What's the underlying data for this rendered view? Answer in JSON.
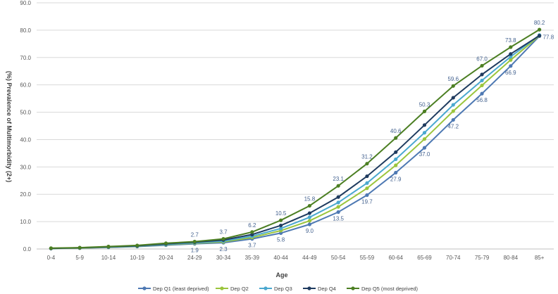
{
  "chart_data": {
    "type": "line",
    "xlabel": "Age",
    "ylabel": "(%) Prevalence of Multimorbidity (2+)",
    "ylim": [
      0,
      90
    ],
    "yticks": [
      "0.0",
      "10.0",
      "20.0",
      "30.0",
      "40.0",
      "50.0",
      "60.0",
      "70.0",
      "80.0",
      "90.0"
    ],
    "grid": true,
    "legend_position": "bottom",
    "categories": [
      "0-4",
      "5-9",
      "10-14",
      "10-19",
      "20-24",
      "24-29",
      "30-34",
      "35-39",
      "40-44",
      "44-49",
      "50-54",
      "55-59",
      "60-64",
      "65-69",
      "70-74",
      "75-79",
      "80-84",
      "85+"
    ],
    "series": [
      {
        "name": "Dep Q1 (least deprived)",
        "color": "#4e79b3",
        "values": [
          0.2,
          0.3,
          0.6,
          0.9,
          1.4,
          1.9,
          2.3,
          3.7,
          5.8,
          9.0,
          13.5,
          19.7,
          27.9,
          37.0,
          47.2,
          56.8,
          66.9,
          77.8
        ]
      },
      {
        "name": "Dep Q2",
        "color": "#9bc53d",
        "values": [
          0.2,
          0.35,
          0.65,
          1.0,
          1.6,
          2.1,
          2.6,
          4.2,
          6.7,
          10.3,
          15.4,
          22.2,
          30.6,
          40.2,
          50.4,
          59.8,
          69.1,
          78.0
        ]
      },
      {
        "name": "Dep Q3",
        "color": "#4aa8cf",
        "values": [
          0.2,
          0.4,
          0.7,
          1.05,
          1.7,
          2.3,
          2.9,
          4.7,
          7.5,
          11.6,
          17.0,
          24.1,
          32.8,
          42.5,
          52.7,
          61.6,
          70.3,
          78.2
        ]
      },
      {
        "name": "Dep Q4",
        "color": "#1f3b5f",
        "values": [
          0.2,
          0.45,
          0.8,
          1.15,
          1.9,
          2.5,
          3.3,
          5.3,
          8.6,
          13.1,
          19.0,
          26.6,
          35.4,
          45.3,
          55.3,
          63.8,
          71.3,
          78.0
        ]
      },
      {
        "name": "Dep Q5 (most deprived)",
        "color": "#4c7f23",
        "values": [
          0.3,
          0.5,
          0.9,
          1.3,
          2.1,
          2.7,
          3.7,
          6.2,
          10.5,
          15.8,
          23.1,
          31.2,
          40.6,
          50.3,
          59.6,
          67.0,
          73.8,
          80.2
        ]
      }
    ],
    "annotations": [
      {
        "series": 4,
        "index": 5,
        "text": "2.7",
        "pos": "above"
      },
      {
        "series": 4,
        "index": 6,
        "text": "3.7",
        "pos": "above"
      },
      {
        "series": 4,
        "index": 7,
        "text": "6.2",
        "pos": "above"
      },
      {
        "series": 4,
        "index": 8,
        "text": "10.5",
        "pos": "above"
      },
      {
        "series": 4,
        "index": 9,
        "text": "15.8",
        "pos": "above"
      },
      {
        "series": 4,
        "index": 10,
        "text": "23.1",
        "pos": "above"
      },
      {
        "series": 4,
        "index": 11,
        "text": "31.2",
        "pos": "above"
      },
      {
        "series": 4,
        "index": 12,
        "text": "40.6",
        "pos": "above"
      },
      {
        "series": 4,
        "index": 13,
        "text": "50.3",
        "pos": "above"
      },
      {
        "series": 4,
        "index": 14,
        "text": "59.6",
        "pos": "above"
      },
      {
        "series": 4,
        "index": 15,
        "text": "67.0",
        "pos": "above"
      },
      {
        "series": 4,
        "index": 16,
        "text": "73.8",
        "pos": "above"
      },
      {
        "series": 4,
        "index": 17,
        "text": "80.2",
        "pos": "above"
      },
      {
        "series": 0,
        "index": 5,
        "text": "1.9",
        "pos": "below"
      },
      {
        "series": 0,
        "index": 6,
        "text": "2.3",
        "pos": "below"
      },
      {
        "series": 0,
        "index": 7,
        "text": "3.7",
        "pos": "below"
      },
      {
        "series": 0,
        "index": 8,
        "text": "5.8",
        "pos": "below"
      },
      {
        "series": 0,
        "index": 9,
        "text": "9.0",
        "pos": "below"
      },
      {
        "series": 0,
        "index": 10,
        "text": "13.5",
        "pos": "below"
      },
      {
        "series": 0,
        "index": 11,
        "text": "19.7",
        "pos": "below"
      },
      {
        "series": 0,
        "index": 12,
        "text": "27.9",
        "pos": "below"
      },
      {
        "series": 0,
        "index": 13,
        "text": "37.0",
        "pos": "below"
      },
      {
        "series": 0,
        "index": 14,
        "text": "47.2",
        "pos": "below"
      },
      {
        "series": 0,
        "index": 15,
        "text": "56.8",
        "pos": "below"
      },
      {
        "series": 0,
        "index": 16,
        "text": "66.9",
        "pos": "below"
      },
      {
        "series": 0,
        "index": 17,
        "text": "77.8",
        "pos": "below"
      }
    ]
  }
}
